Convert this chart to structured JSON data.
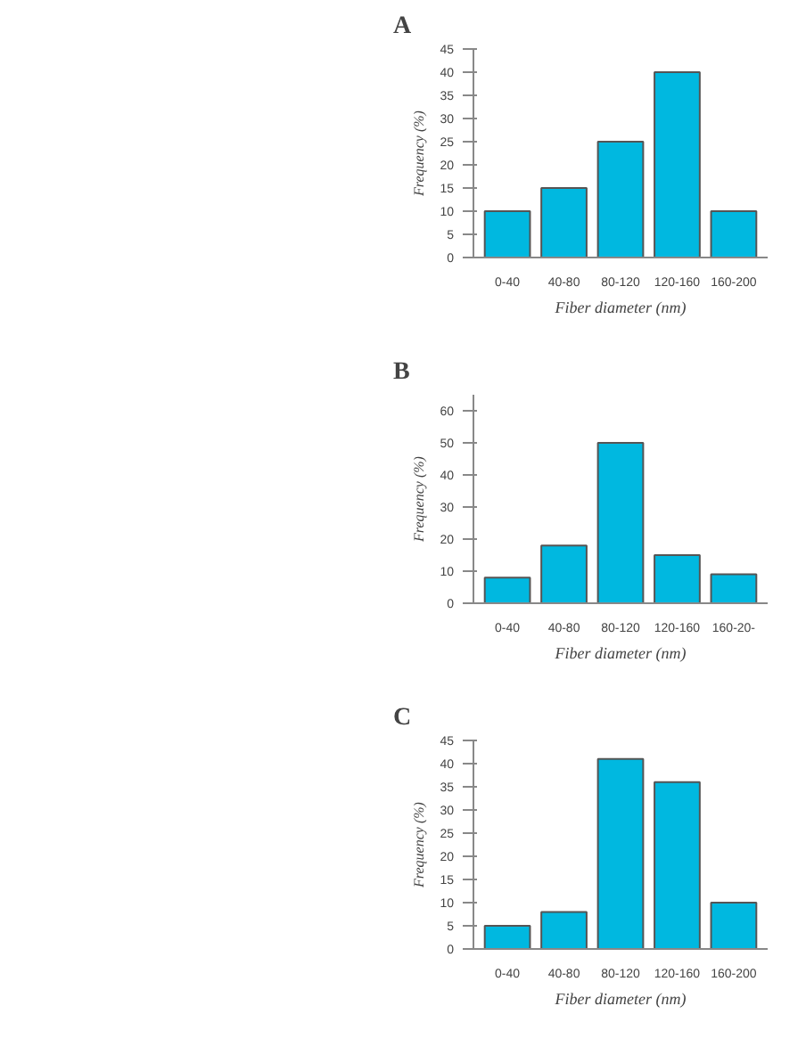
{
  "chart_data": [
    {
      "type": "bar",
      "title": "A",
      "categories": [
        "0-40",
        "40-80",
        "80-120",
        "120-160",
        "160-200"
      ],
      "values": [
        10,
        15,
        25,
        40,
        10
      ],
      "color": "#00b8e0",
      "xlabel": "Fiber diameter (nm)",
      "ylabel": "Frequency (%)",
      "ylim": [
        0,
        45
      ],
      "yticks": [
        0,
        5,
        10,
        15,
        20,
        25,
        30,
        35,
        40,
        45
      ],
      "grid": false
    },
    {
      "type": "bar",
      "title": "B",
      "categories": [
        "0-40",
        "40-80",
        "80-120",
        "120-160",
        "160-20-"
      ],
      "values": [
        8,
        18,
        50,
        15,
        9
      ],
      "color": "#00b8e0",
      "xlabel": "Fiber diameter (nm)",
      "ylabel": "Frequency (%)",
      "ylim": [
        0,
        65
      ],
      "yticks": [
        0,
        10,
        20,
        30,
        40,
        50,
        60
      ],
      "grid": false
    },
    {
      "type": "bar",
      "title": "C",
      "categories": [
        "0-40",
        "40-80",
        "80-120",
        "120-160",
        "160-200"
      ],
      "values": [
        5,
        8,
        41,
        36,
        10
      ],
      "color": "#00b8e0",
      "xlabel": "Fiber diameter (nm)",
      "ylabel": "Frequency (%)",
      "ylim": [
        0,
        45
      ],
      "yticks": [
        0,
        5,
        10,
        15,
        20,
        25,
        30,
        35,
        40,
        45
      ],
      "grid": false
    }
  ]
}
